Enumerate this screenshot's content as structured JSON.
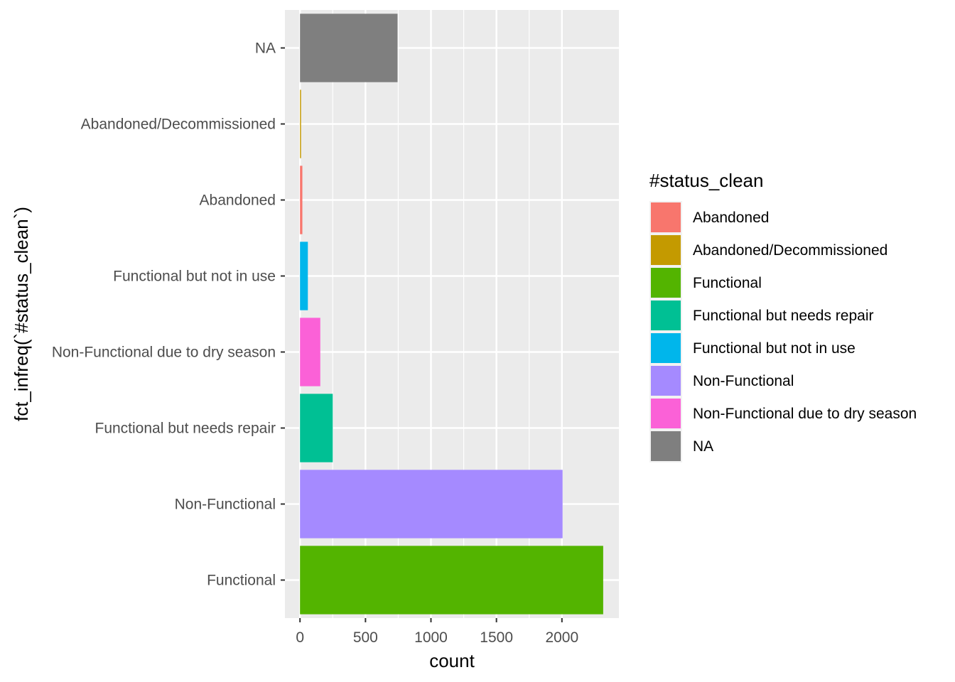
{
  "chart_data": {
    "type": "bar",
    "orientation": "horizontal",
    "xlabel": "count",
    "ylabel": "fct_infreq(`#status_clean`)",
    "xlim": [
      -115,
      2435
    ],
    "xticks": [
      0,
      500,
      1000,
      1500,
      2000
    ],
    "xtick_labels": [
      "0",
      "500",
      "1000",
      "1500",
      "2000"
    ],
    "grid": true,
    "legend_position": "right",
    "categories": [
      "Functional",
      "Non-Functional",
      "Functional but needs repair",
      "Non-Functional due to dry season",
      "Functional but not in use",
      "Abandoned",
      "Abandoned/Decommissioned",
      "NA"
    ],
    "values": [
      2315,
      2005,
      250,
      155,
      60,
      18,
      8,
      745
    ],
    "colors": [
      "#53B400",
      "#A58AFF",
      "#00C094",
      "#FB61D7",
      "#00B6EB",
      "#F8766D",
      "#C49A00",
      "#7F7F7F"
    ],
    "legend": {
      "title": "#status_clean",
      "entries": [
        {
          "label": "Abandoned",
          "color": "#F8766D"
        },
        {
          "label": "Abandoned/Decommissioned",
          "color": "#C49A00"
        },
        {
          "label": "Functional",
          "color": "#53B400"
        },
        {
          "label": "Functional but needs repair",
          "color": "#00C094"
        },
        {
          "label": "Functional but not in use",
          "color": "#00B6EB"
        },
        {
          "label": "Non-Functional",
          "color": "#A58AFF"
        },
        {
          "label": "Non-Functional due to dry season",
          "color": "#FB61D7"
        },
        {
          "label": "NA",
          "color": "#7F7F7F"
        }
      ]
    }
  }
}
